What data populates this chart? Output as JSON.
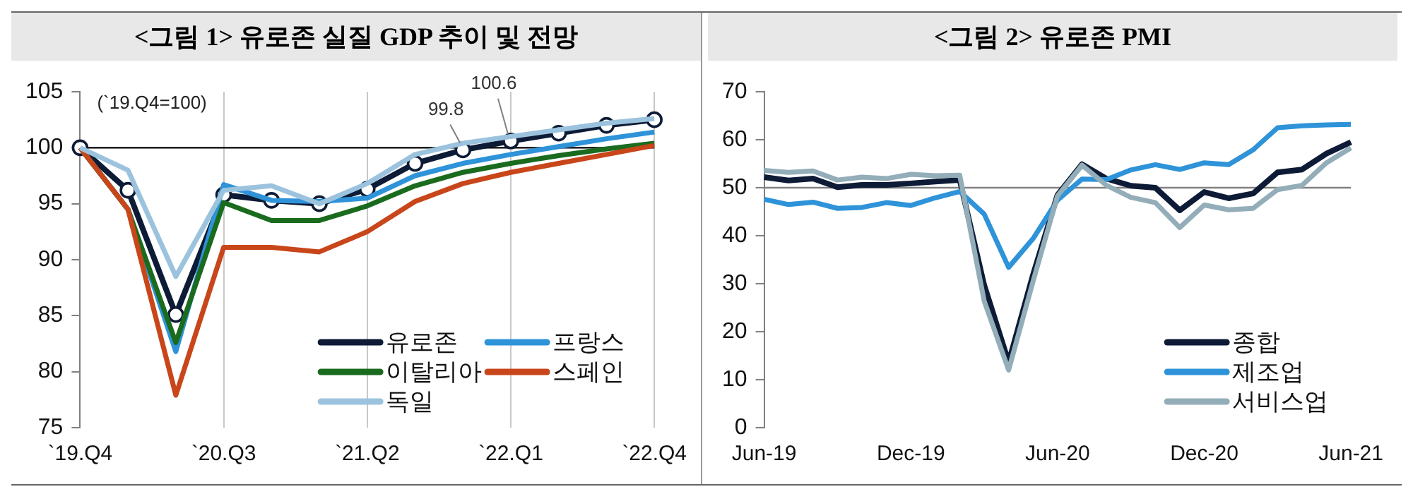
{
  "chart_data": [
    {
      "type": "line",
      "title": "<그림 1> 유로존 실질 GDP 추이 및 전망",
      "categories": [
        "`19.Q4",
        null,
        null,
        "`20.Q3",
        null,
        null,
        "`21.Q2",
        null,
        null,
        "`22.Q1",
        null,
        null,
        "`22.Q4"
      ],
      "ylim": [
        75,
        105
      ],
      "yticks": [
        75,
        80,
        85,
        90,
        95,
        100,
        105
      ],
      "grid": "x",
      "legend": "bottom right",
      "annotations": [
        "(`19.Q4=100)"
      ],
      "ref_lines": [
        {
          "axis": "y",
          "value": 100,
          "label": null,
          "color": "#000000"
        }
      ],
      "series": [
        {
          "name": "유로존",
          "color": "#0d1b36",
          "marker": "circle",
          "values": [
            100,
            96.2,
            85.1,
            95.8,
            95.3,
            95.0,
            96.3,
            98.6,
            99.8,
            100.6,
            101.3,
            102.0,
            102.5
          ],
          "value_labels": [
            null,
            null,
            null,
            null,
            null,
            null,
            null,
            null,
            "99.8",
            "100.6",
            null,
            null,
            null
          ]
        },
        {
          "name": "프랑스",
          "color": "#2e93d8",
          "values": [
            100,
            94.5,
            81.8,
            96.7,
            95.3,
            95.2,
            95.5,
            97.5,
            98.6,
            99.4,
            100.1,
            100.8,
            101.4
          ]
        },
        {
          "name": "이탈리아",
          "color": "#1a6b1e",
          "values": [
            100,
            94.5,
            82.6,
            95.1,
            93.5,
            93.5,
            94.8,
            96.6,
            97.8,
            98.6,
            99.3,
            99.9,
            100.4
          ]
        },
        {
          "name": "스페인",
          "color": "#c8461a",
          "values": [
            100,
            94.5,
            77.9,
            91.1,
            91.1,
            90.7,
            92.5,
            95.2,
            96.8,
            97.8,
            98.6,
            99.4,
            100.2
          ]
        },
        {
          "name": "독일",
          "color": "#9cc3de",
          "values": [
            100,
            98.0,
            88.5,
            96.2,
            96.6,
            95.0,
            96.8,
            99.4,
            100.4,
            101.0,
            101.6,
            102.2,
            102.6
          ]
        }
      ]
    },
    {
      "type": "line",
      "title": "<그림 2> 유로존 PMI",
      "categories": [
        "Jun-19",
        null,
        null,
        null,
        null,
        null,
        "Dec-19",
        null,
        null,
        null,
        null,
        null,
        "Jun-20",
        null,
        null,
        null,
        null,
        null,
        "Dec-20",
        null,
        null,
        null,
        null,
        null,
        "Jun-21"
      ],
      "ylim": [
        0,
        70
      ],
      "yticks": [
        0,
        10,
        20,
        30,
        40,
        50,
        60,
        70
      ],
      "legend": "bottom right",
      "ref_lines": [
        {
          "axis": "y",
          "value": 50,
          "label": null,
          "color": "#808080"
        }
      ],
      "series": [
        {
          "name": "종합",
          "color": "#0d1b36",
          "values": [
            52.2,
            51.5,
            51.9,
            50.1,
            50.6,
            50.6,
            50.9,
            51.3,
            51.6,
            29.7,
            13.6,
            31.9,
            48.5,
            54.9,
            51.9,
            50.4,
            50.0,
            45.3,
            49.1,
            47.8,
            48.8,
            53.2,
            53.8,
            57.1,
            59.5
          ]
        },
        {
          "name": "제조업",
          "color": "#2e93d8",
          "values": [
            47.6,
            46.5,
            47.0,
            45.7,
            45.9,
            46.9,
            46.3,
            47.9,
            49.2,
            44.5,
            33.4,
            39.4,
            47.4,
            51.8,
            51.7,
            53.7,
            54.8,
            53.8,
            55.2,
            54.8,
            57.9,
            62.5,
            62.9,
            63.1,
            63.2
          ]
        },
        {
          "name": "서비스업",
          "color": "#93adb9",
          "values": [
            53.6,
            53.2,
            53.5,
            51.6,
            52.2,
            51.9,
            52.8,
            52.5,
            52.6,
            26.4,
            12.0,
            30.5,
            48.3,
            54.7,
            50.5,
            48.0,
            46.9,
            41.7,
            46.4,
            45.4,
            45.7,
            49.6,
            50.5,
            55.2,
            58.3
          ]
        }
      ]
    }
  ]
}
